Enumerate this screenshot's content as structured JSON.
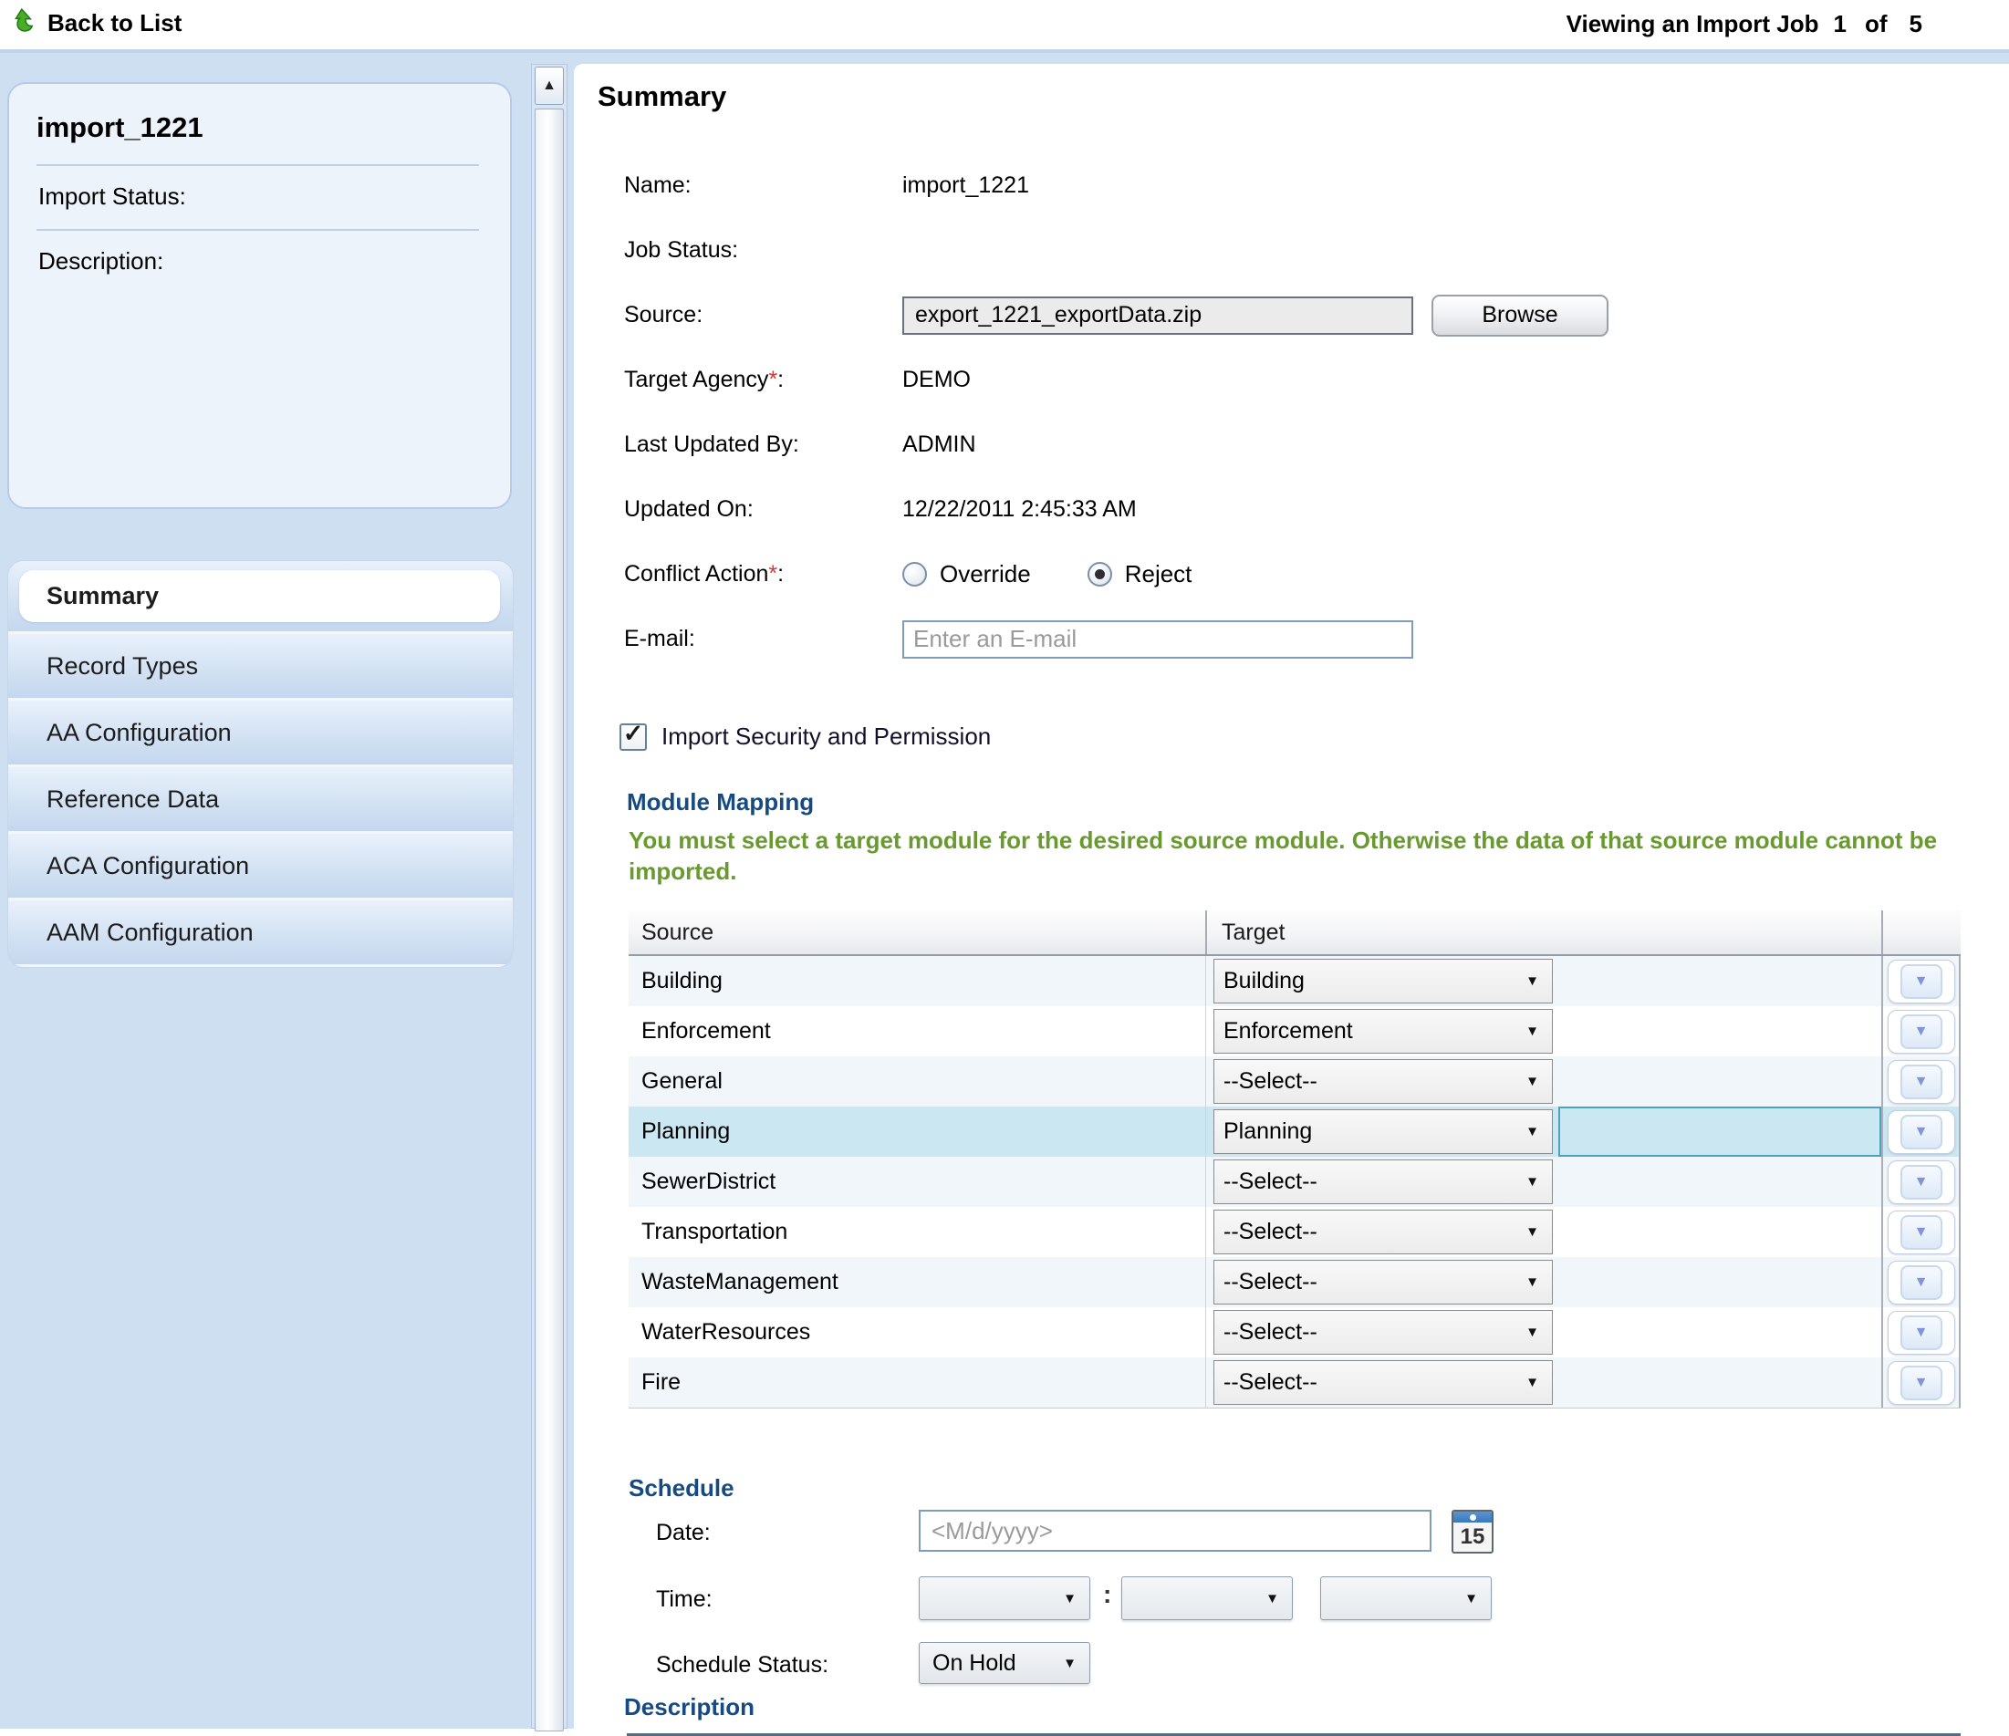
{
  "ui": {
    "check": "✓",
    "arrow_down": "▼",
    "arrow_up": "▲",
    "colon": ":",
    "asterisk": "*"
  },
  "colors": {
    "page_bg": "#cfdff2",
    "heading_navy": "#164a80",
    "instruction_green": "#689a2f",
    "highlight_row": "#cbe7f1",
    "highlight_border": "#4aa2bb",
    "required_red": "#e03232"
  },
  "header": {
    "back_label": "Back to List",
    "viewing_label": "Viewing an Import Job",
    "page_current": "1",
    "page_of": "of",
    "page_total": "5"
  },
  "sidebar": {
    "info": {
      "title": "import_1221",
      "fields": [
        "Import Status:",
        "Description:"
      ]
    },
    "nav": [
      {
        "label": "Summary",
        "active": true
      },
      {
        "label": "Record Types"
      },
      {
        "label": "AA Configuration"
      },
      {
        "label": "Reference Data"
      },
      {
        "label": "ACA Configuration"
      },
      {
        "label": "AAM Configuration"
      }
    ]
  },
  "summary": {
    "title": "Summary",
    "name_label": "Name:",
    "name_value": "import_1221",
    "job_status_label": "Job Status:",
    "job_status_value": "",
    "source_label": "Source:",
    "source_value": "export_1221_exportData.zip",
    "browse_label": "Browse",
    "target_agency_label": "Target Agency",
    "target_agency_value": "DEMO",
    "last_updated_by_label": "Last Updated By:",
    "last_updated_by_value": "ADMIN",
    "updated_on_label": "Updated On:",
    "updated_on_value": "12/22/2011 2:45:33 AM",
    "conflict_action_label": "Conflict Action",
    "conflict_options": [
      {
        "label": "Override",
        "selected": false
      },
      {
        "label": "Reject",
        "selected": true
      }
    ],
    "email_label": "E-mail:",
    "email_placeholder": "Enter an E-mail",
    "security_checkbox_label": "Import Security and Permission",
    "security_checkbox_checked": true
  },
  "module_mapping": {
    "title": "Module Mapping",
    "instruction": "You must select a target module for the desired source module. Otherwise the data of that source module cannot be imported.",
    "columns": [
      "Source",
      "Target"
    ],
    "rows": [
      {
        "source": "Building",
        "target": "Building"
      },
      {
        "source": "Enforcement",
        "target": "Enforcement"
      },
      {
        "source": "General",
        "target": "--Select--"
      },
      {
        "source": "Planning",
        "target": "Planning",
        "highlighted": true
      },
      {
        "source": "SewerDistrict",
        "target": "--Select--"
      },
      {
        "source": "Transportation",
        "target": "--Select--"
      },
      {
        "source": "WasteManagement",
        "target": "--Select--"
      },
      {
        "source": "WaterResources",
        "target": "--Select--"
      },
      {
        "source": "Fire",
        "target": "--Select--"
      }
    ]
  },
  "schedule": {
    "title": "Schedule",
    "date_label": "Date:",
    "date_placeholder": "<M/d/yyyy>",
    "calendar_day": "15",
    "time_label": "Time:",
    "time_values": [
      "",
      "",
      ""
    ],
    "status_label": "Schedule Status:",
    "status_value": "On Hold",
    "description_title": "Description"
  }
}
